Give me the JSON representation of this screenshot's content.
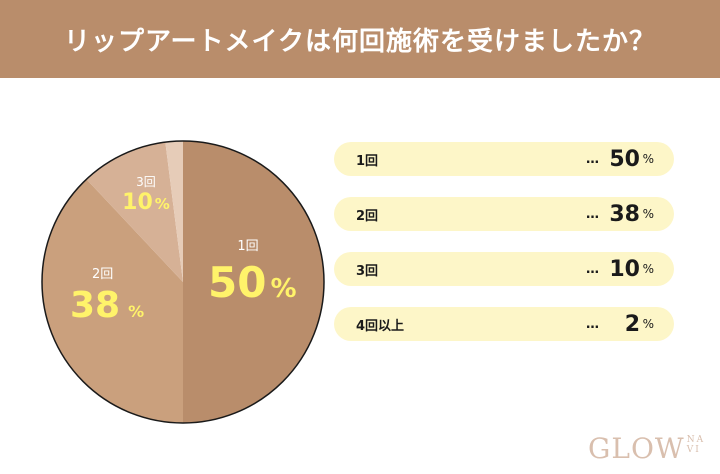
{
  "header": {
    "title": "リップアートメイクは何回施術を受けましたか？"
  },
  "chart_data": {
    "type": "pie",
    "title": "リップアートメイクは何回施術を受けましたか？",
    "categories": [
      "1回",
      "2回",
      "3回",
      "4回以上"
    ],
    "values": [
      50,
      38,
      10,
      2
    ],
    "unit": "%",
    "colors": [
      "#b98d6b",
      "#caa07d",
      "#d6b196",
      "#e6ccb8"
    ],
    "start_angle": "12 o'clock",
    "direction": "clockwise",
    "legend_position": "right"
  },
  "pie_labels": [
    {
      "name": "1回",
      "value": "50",
      "pct": "%"
    },
    {
      "name": "2回",
      "value": "38",
      "pct": "%"
    },
    {
      "name": "3回",
      "value": "10",
      "pct": "%"
    }
  ],
  "legend": [
    {
      "name": "1回",
      "dots": "…",
      "value": "50",
      "pct": "%"
    },
    {
      "name": "2回",
      "dots": "…",
      "value": "38",
      "pct": "%"
    },
    {
      "name": "3回",
      "dots": "…",
      "value": "10",
      "pct": "%"
    },
    {
      "name": "4回以上",
      "dots": "…",
      "value": "2",
      "pct": "%"
    }
  ],
  "logo": {
    "main": "GLOW",
    "sub_top": "NA",
    "sub_bottom": "VI"
  }
}
